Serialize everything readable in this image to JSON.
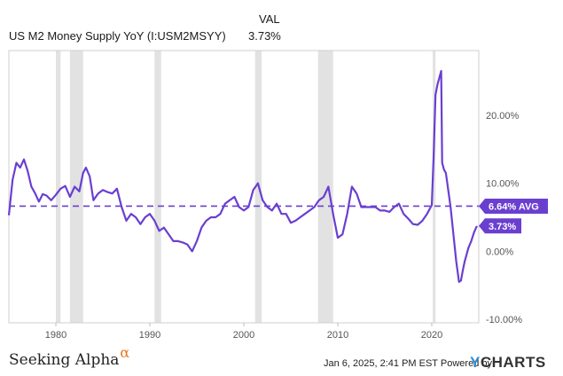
{
  "header": {
    "series_name": "US M2 Money Supply YoY (I:USM2MSYY)",
    "val_heading": "VAL",
    "val_value": "3.73%"
  },
  "footer": {
    "brand_text": "Seeking Alpha",
    "brand_mark": "α",
    "timestamp": "Jan 6, 2025, 2:41 PM EST",
    "powered_by": "Powered by",
    "ycharts_y": "Y",
    "ycharts_rest": "CHARTS"
  },
  "colors": {
    "line": "#6a3fd0",
    "recession": "#e2e2e2",
    "axis_text": "#555555",
    "avg_label_bg": "#6a3fd0"
  },
  "chart_data": {
    "type": "line",
    "title": "US M2 Money Supply YoY (I:USM2MSYY)",
    "xlabel": "",
    "ylabel": "",
    "xlim": [
      1975.0,
      2025.0
    ],
    "ylim": [
      -10.5,
      29.5
    ],
    "x_ticks": [
      1980,
      1990,
      2000,
      2010,
      2020
    ],
    "x_tick_labels": [
      "1980",
      "1990",
      "2000",
      "2010",
      "2020"
    ],
    "y_ticks": [
      20,
      10,
      0,
      -10
    ],
    "y_tick_labels": [
      "20.00%",
      "10.00%",
      "0.00%",
      "-10.00%"
    ],
    "grid": false,
    "average": {
      "value": 6.64,
      "label": "6.64% AVG"
    },
    "last_value": {
      "value": 3.73,
      "label": "3.73%"
    },
    "recessions": [
      [
        1980.0,
        1980.5
      ],
      [
        1981.5,
        1982.9
      ],
      [
        1990.5,
        1991.2
      ],
      [
        2001.2,
        2001.9
      ],
      [
        2007.9,
        2009.5
      ],
      [
        2020.1,
        2020.4
      ]
    ],
    "series": [
      {
        "x": [
          1975.0,
          1975.4,
          1975.8,
          1976.2,
          1976.6,
          1977.0,
          1977.4,
          1977.8,
          1978.2,
          1978.6,
          1979.0,
          1979.5,
          1980.0,
          1980.5,
          1981.0,
          1981.5,
          1982.0,
          1982.5,
          1982.9,
          1983.2,
          1983.6,
          1984.0,
          1984.5,
          1985.0,
          1985.5,
          1986.0,
          1986.5,
          1987.0,
          1987.5,
          1988.0,
          1988.5,
          1989.0,
          1989.5,
          1990.0,
          1990.5,
          1991.0,
          1991.5,
          1992.0,
          1992.5,
          1993.0,
          1993.5,
          1994.0,
          1994.5,
          1995.0,
          1995.5,
          1996.0,
          1996.5,
          1997.0,
          1997.5,
          1998.0,
          1998.5,
          1999.0,
          1999.5,
          2000.0,
          2000.5,
          2001.0,
          2001.5,
          2002.0,
          2002.5,
          2003.0,
          2003.5,
          2004.0,
          2004.5,
          2005.0,
          2005.5,
          2006.0,
          2006.5,
          2007.0,
          2007.5,
          2008.0,
          2008.5,
          2009.0,
          2009.5,
          2010.0,
          2010.5,
          2011.0,
          2011.5,
          2012.0,
          2012.5,
          2013.0,
          2013.5,
          2014.0,
          2014.5,
          2015.0,
          2015.5,
          2016.0,
          2016.5,
          2017.0,
          2017.5,
          2018.0,
          2018.5,
          2019.0,
          2019.5,
          2020.0,
          2020.2,
          2020.4,
          2020.6,
          2021.0,
          2021.1,
          2021.3,
          2021.5,
          2021.8,
          2022.0,
          2022.3,
          2022.6,
          2022.9,
          2023.1,
          2023.3,
          2023.5,
          2023.7,
          2023.9,
          2024.2,
          2024.5,
          2024.8
        ],
        "values": [
          5.3,
          10.5,
          13.0,
          12.3,
          13.5,
          11.8,
          9.5,
          8.5,
          7.3,
          8.4,
          8.2,
          7.5,
          8.3,
          9.2,
          9.6,
          8.0,
          9.5,
          8.8,
          11.5,
          12.3,
          11.0,
          7.5,
          8.5,
          9.0,
          8.7,
          8.5,
          9.2,
          6.5,
          4.5,
          5.5,
          5.0,
          4.0,
          5.0,
          5.5,
          4.5,
          3.0,
          3.5,
          2.5,
          1.5,
          1.5,
          1.3,
          1.0,
          0.0,
          1.5,
          3.5,
          4.5,
          5.0,
          5.0,
          5.5,
          7.0,
          7.5,
          8.0,
          6.5,
          6.0,
          6.5,
          9.0,
          10.0,
          7.5,
          6.5,
          6.0,
          7.0,
          5.5,
          5.5,
          4.2,
          4.5,
          5.0,
          5.5,
          6.0,
          6.5,
          7.5,
          8.0,
          9.5,
          5.5,
          2.0,
          2.5,
          5.5,
          9.5,
          8.5,
          6.5,
          6.5,
          6.5,
          6.5,
          6.0,
          6.0,
          5.8,
          6.5,
          7.0,
          5.5,
          4.8,
          4.0,
          3.9,
          4.5,
          5.5,
          6.8,
          14.0,
          23.0,
          24.5,
          26.5,
          13.0,
          12.0,
          11.5,
          8.5,
          6.5,
          2.5,
          -1.5,
          -4.5,
          -4.3,
          -2.8,
          -1.5,
          -0.5,
          0.5,
          1.5,
          2.8,
          3.73
        ]
      }
    ]
  }
}
